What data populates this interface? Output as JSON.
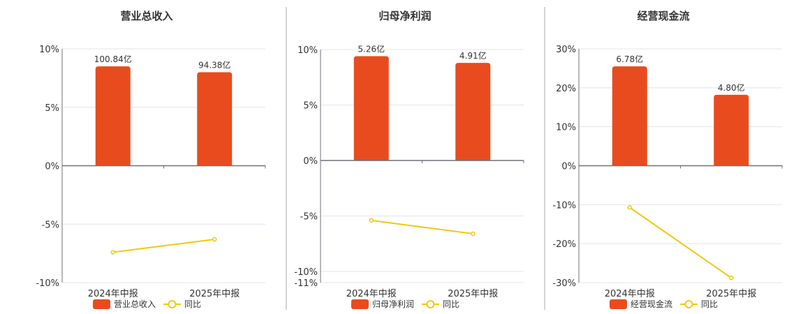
{
  "colors": {
    "bar": "#e84c1e",
    "line": "#f2c811",
    "grid": "#e0e4ef",
    "axis": "#6e7079",
    "divider": "#aaaaaa"
  },
  "chart_data": [
    {
      "type": "bar",
      "title": "营业总收入",
      "categories": [
        "2024年中报",
        "2025年中报"
      ],
      "ylim": [
        -10,
        10
      ],
      "yticks": [
        10,
        5,
        0,
        -5,
        -10
      ],
      "ytick_labels": [
        "10%",
        "5%",
        "0%",
        "-5%",
        "-10%"
      ],
      "series": [
        {
          "name": "营业总收入",
          "kind": "bar",
          "values": [
            8.5,
            8.0
          ],
          "labels": [
            "100.84亿",
            "94.38亿"
          ]
        },
        {
          "name": "同比",
          "kind": "line",
          "values": [
            -7.4,
            -6.3
          ]
        }
      ],
      "legend": "bottom-center"
    },
    {
      "type": "bar",
      "title": "归母净利润",
      "categories": [
        "2024年中报",
        "2025年中报"
      ],
      "ylim": [
        -11,
        10
      ],
      "yticks": [
        10,
        5,
        0,
        -5,
        -10,
        -11
      ],
      "ytick_labels": [
        "10%",
        "5%",
        "0%",
        "-5%",
        "-10%",
        "-11%"
      ],
      "series": [
        {
          "name": "归母净利润",
          "kind": "bar",
          "values": [
            9.4,
            8.8
          ],
          "labels": [
            "5.26亿",
            "4.91亿"
          ]
        },
        {
          "name": "同比",
          "kind": "line",
          "values": [
            -5.4,
            -6.6
          ]
        }
      ],
      "legend": "bottom-center"
    },
    {
      "type": "bar",
      "title": "经营现金流",
      "categories": [
        "2024年中报",
        "2025年中报"
      ],
      "ylim": [
        -30,
        30
      ],
      "yticks": [
        30,
        20,
        10,
        0,
        -10,
        -20,
        -30
      ],
      "ytick_labels": [
        "30%",
        "20%",
        "10%",
        "0%",
        "-10%",
        "-20%",
        "-30%"
      ],
      "series": [
        {
          "name": "经营现金流",
          "kind": "bar",
          "values": [
            25.5,
            18.2
          ],
          "labels": [
            "6.78亿",
            "4.80亿"
          ]
        },
        {
          "name": "同比",
          "kind": "line",
          "values": [
            -10.7,
            -28.8
          ]
        }
      ],
      "legend": "bottom-center"
    }
  ]
}
